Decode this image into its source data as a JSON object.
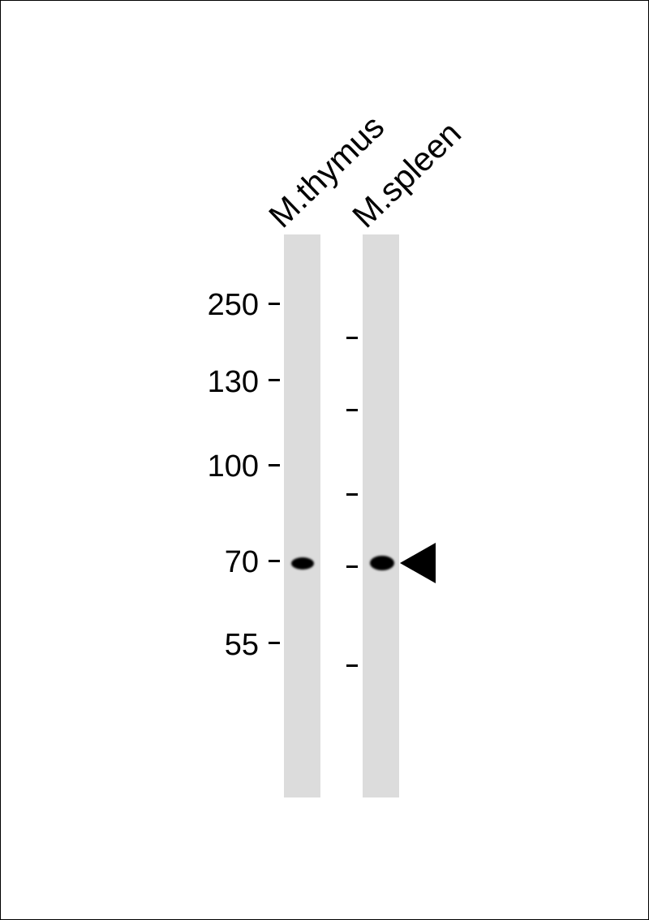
{
  "lanes": [
    {
      "label": "M.thymus"
    },
    {
      "label": "M.spleen"
    }
  ],
  "molecular_weight_markers": [
    "250",
    "130",
    "100",
    "70",
    "55"
  ],
  "arrow_icon": "left-pointing-triangle",
  "band_color": "#000000",
  "lane_color": "#dcdcdc"
}
